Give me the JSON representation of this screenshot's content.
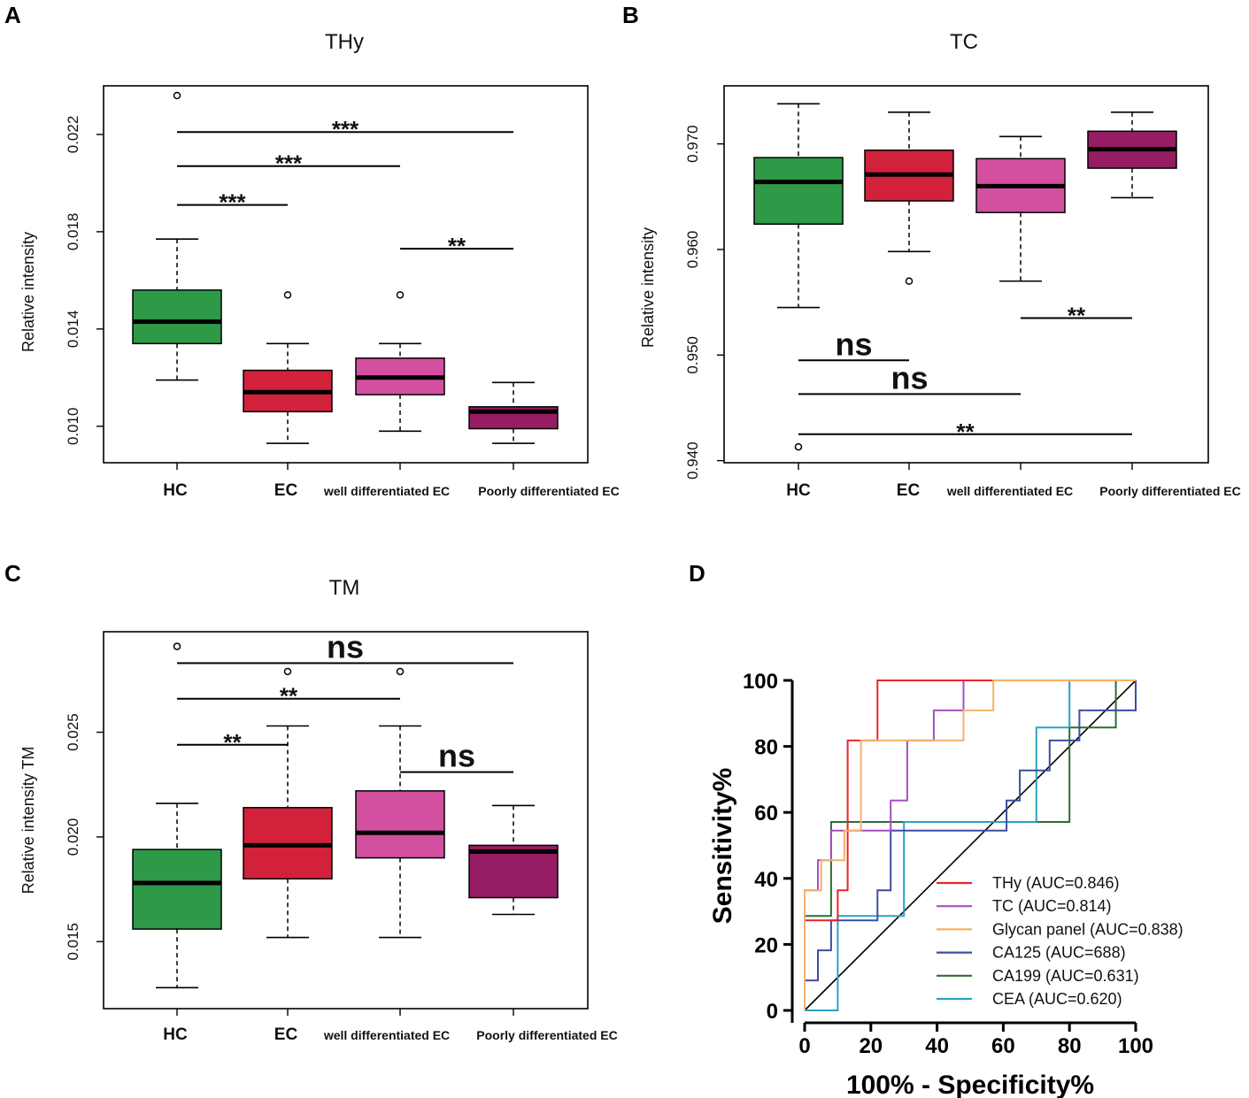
{
  "chart_data": [
    {
      "id": "A",
      "type": "box",
      "panel_label": "A",
      "title": "THy",
      "ylabel": "Relative intensity",
      "ylim": [
        0.0085,
        0.024
      ],
      "yticks": [
        0.01,
        0.014,
        0.018,
        0.022
      ],
      "ytick_labels": [
        "0.010",
        "0.014",
        "0.018",
        "0.022"
      ],
      "categories": [
        "HC",
        "EC",
        "well differentiated EC",
        "Poorly differentiated EC"
      ],
      "boxes": [
        {
          "category": "HC",
          "whisker_low": 0.0119,
          "q1": 0.0134,
          "median": 0.0143,
          "q3": 0.0156,
          "whisker_high": 0.0177,
          "outliers": [
            0.0236
          ],
          "color": "#2e9a47"
        },
        {
          "category": "EC",
          "whisker_low": 0.0093,
          "q1": 0.0106,
          "median": 0.0114,
          "q3": 0.0123,
          "whisker_high": 0.0134,
          "outliers": [
            0.0154
          ],
          "color": "#d2213a"
        },
        {
          "category": "well differentiated EC",
          "whisker_low": 0.0098,
          "q1": 0.0113,
          "median": 0.012,
          "q3": 0.0128,
          "whisker_high": 0.0134,
          "outliers": [
            0.0154
          ],
          "color": "#d34f9f"
        },
        {
          "category": "Poorly differentiated EC",
          "whisker_low": 0.0093,
          "q1": 0.0099,
          "median": 0.0106,
          "q3": 0.0108,
          "whisker_high": 0.0118,
          "outliers": [],
          "color": "#961d63"
        }
      ],
      "comparisons": [
        {
          "from": 0,
          "to": 3,
          "y": 0.0221,
          "label": "***"
        },
        {
          "from": 0,
          "to": 2,
          "y": 0.0207,
          "label": "***"
        },
        {
          "from": 0,
          "to": 1,
          "y": 0.0191,
          "label": "***"
        },
        {
          "from": 2,
          "to": 3,
          "y": 0.0173,
          "label": "**"
        }
      ]
    },
    {
      "id": "B",
      "type": "box",
      "panel_label": "B",
      "title": "TC",
      "ylabel": "Relative intensity",
      "ylim": [
        0.9398,
        0.9755
      ],
      "yticks": [
        0.94,
        0.95,
        0.96,
        0.97
      ],
      "ytick_labels": [
        "0.940",
        "0.950",
        "0.960",
        "0.970"
      ],
      "categories": [
        "HC",
        "EC",
        "well differentiated EC",
        "Poorly differentiated EC"
      ],
      "boxes": [
        {
          "category": "HC",
          "whisker_low": 0.9545,
          "q1": 0.9624,
          "median": 0.9664,
          "q3": 0.9687,
          "whisker_high": 0.9738,
          "outliers": [
            0.9413
          ],
          "color": "#2e9a47"
        },
        {
          "category": "EC",
          "whisker_low": 0.9598,
          "q1": 0.9646,
          "median": 0.9671,
          "q3": 0.9694,
          "whisker_high": 0.973,
          "outliers": [
            0.957
          ],
          "color": "#d2213a"
        },
        {
          "category": "well differentiated EC",
          "whisker_low": 0.957,
          "q1": 0.9635,
          "median": 0.966,
          "q3": 0.9686,
          "whisker_high": 0.9707,
          "outliers": [],
          "color": "#d34f9f"
        },
        {
          "category": "Poorly differentiated EC",
          "whisker_low": 0.9649,
          "q1": 0.9677,
          "median": 0.9695,
          "q3": 0.9712,
          "whisker_high": 0.973,
          "outliers": [],
          "color": "#961d63"
        }
      ],
      "comparisons": [
        {
          "from": 2,
          "to": 3,
          "y": 0.9535,
          "label": "**"
        },
        {
          "from": 0,
          "to": 1,
          "y": 0.9495,
          "label": "ns"
        },
        {
          "from": 0,
          "to": 2,
          "y": 0.9463,
          "label": "ns"
        },
        {
          "from": 0,
          "to": 3,
          "y": 0.9425,
          "label": "**"
        }
      ]
    },
    {
      "id": "C",
      "type": "box",
      "panel_label": "C",
      "title": "TM",
      "ylabel": "Relative intensity TM",
      "ylim": [
        0.0118,
        0.0298
      ],
      "yticks": [
        0.015,
        0.02,
        0.025
      ],
      "ytick_labels": [
        "0.015",
        "0.020",
        "0.025"
      ],
      "categories": [
        "HC",
        "EC",
        "well differentiated EC",
        "Poorly differentiated EC"
      ],
      "boxes": [
        {
          "category": "HC",
          "whisker_low": 0.0128,
          "q1": 0.0156,
          "median": 0.0178,
          "q3": 0.0194,
          "whisker_high": 0.0216,
          "outliers": [
            0.0291
          ],
          "color": "#2e9a47"
        },
        {
          "category": "EC",
          "whisker_low": 0.0152,
          "q1": 0.018,
          "median": 0.0196,
          "q3": 0.0214,
          "whisker_high": 0.0253,
          "outliers": [
            0.0279
          ],
          "color": "#d2213a"
        },
        {
          "category": "well differentiated EC",
          "whisker_low": 0.0152,
          "q1": 0.019,
          "median": 0.0202,
          "q3": 0.0222,
          "whisker_high": 0.0253,
          "outliers": [
            0.0279
          ],
          "color": "#d34f9f"
        },
        {
          "category": "Poorly differentiated EC",
          "whisker_low": 0.0163,
          "q1": 0.0171,
          "median": 0.0193,
          "q3": 0.0196,
          "whisker_high": 0.0215,
          "outliers": [],
          "color": "#961d63"
        }
      ],
      "comparisons": [
        {
          "from": 0,
          "to": 3,
          "y": 0.0283,
          "label": "ns"
        },
        {
          "from": 0,
          "to": 2,
          "y": 0.0266,
          "label": "**"
        },
        {
          "from": 0,
          "to": 1,
          "y": 0.0244,
          "label": "**"
        },
        {
          "from": 2,
          "to": 3,
          "y": 0.0231,
          "label": "ns"
        }
      ]
    },
    {
      "id": "D",
      "type": "line",
      "panel_label": "D",
      "title": "",
      "xlabel": "100% - Specificity%",
      "ylabel": "Sensitivity%",
      "xlim": [
        0,
        100
      ],
      "ylim": [
        0,
        100
      ],
      "ticks": [
        0,
        20,
        40,
        60,
        80,
        100
      ],
      "reference_line": [
        [
          0,
          0
        ],
        [
          100,
          100
        ]
      ],
      "series": [
        {
          "name": "THy (AUC=0.846)",
          "color": "#e8232a",
          "points": [
            [
              0,
              0
            ],
            [
              0,
              27.3
            ],
            [
              10,
              27.3
            ],
            [
              10,
              36.4
            ],
            [
              13,
              36.4
            ],
            [
              13,
              81.8
            ],
            [
              22,
              81.8
            ],
            [
              22,
              100
            ],
            [
              100,
              100
            ]
          ]
        },
        {
          "name": "TC (AUC=0.814)",
          "color": "#a64fc0",
          "points": [
            [
              0,
              0
            ],
            [
              0,
              36.4
            ],
            [
              4,
              36.4
            ],
            [
              4,
              45.5
            ],
            [
              8,
              45.5
            ],
            [
              8,
              54.5
            ],
            [
              26,
              54.5
            ],
            [
              26,
              63.6
            ],
            [
              31,
              63.6
            ],
            [
              31,
              81.8
            ],
            [
              39,
              81.8
            ],
            [
              39,
              90.9
            ],
            [
              48,
              90.9
            ],
            [
              48,
              100
            ],
            [
              100,
              100
            ]
          ]
        },
        {
          "name": "Glycan panel (AUC=0.838)",
          "color": "#f5b06a",
          "points": [
            [
              0,
              0
            ],
            [
              0,
              36.4
            ],
            [
              5,
              36.4
            ],
            [
              5,
              45.5
            ],
            [
              12,
              45.5
            ],
            [
              12,
              54.5
            ],
            [
              17,
              54.5
            ],
            [
              17,
              81.8
            ],
            [
              48,
              81.8
            ],
            [
              48,
              90.9
            ],
            [
              57,
              90.9
            ],
            [
              57,
              100
            ],
            [
              100,
              100
            ]
          ]
        },
        {
          "name": "CA125 (AUC=688)",
          "color": "#3b4ea0",
          "points": [
            [
              0,
              0
            ],
            [
              0,
              9.1
            ],
            [
              4,
              9.1
            ],
            [
              4,
              18.2
            ],
            [
              8,
              18.2
            ],
            [
              8,
              27.3
            ],
            [
              22,
              27.3
            ],
            [
              22,
              36.4
            ],
            [
              26,
              36.4
            ],
            [
              26,
              54.5
            ],
            [
              61,
              54.5
            ],
            [
              61,
              63.6
            ],
            [
              65,
              63.6
            ],
            [
              65,
              72.7
            ],
            [
              74,
              72.7
            ],
            [
              74,
              81.8
            ],
            [
              83,
              81.8
            ],
            [
              83,
              90.9
            ],
            [
              100,
              90.9
            ],
            [
              100,
              100
            ]
          ]
        },
        {
          "name": "CA199 (AUC=0.631)",
          "color": "#2c6e35",
          "points": [
            [
              0,
              0
            ],
            [
              0,
              28.6
            ],
            [
              8,
              28.6
            ],
            [
              8,
              57.1
            ],
            [
              80,
              57.1
            ],
            [
              80,
              85.7
            ],
            [
              94,
              85.7
            ],
            [
              94,
              100
            ],
            [
              100,
              100
            ]
          ]
        },
        {
          "name": "CEA (AUC=0.620)",
          "color": "#2aa2c8",
          "points": [
            [
              0,
              0
            ],
            [
              10,
              0
            ],
            [
              10,
              28.6
            ],
            [
              30,
              28.6
            ],
            [
              30,
              57.1
            ],
            [
              70,
              57.1
            ],
            [
              70,
              85.7
            ],
            [
              80,
              85.7
            ],
            [
              80,
              100
            ],
            [
              100,
              100
            ]
          ]
        }
      ]
    }
  ]
}
